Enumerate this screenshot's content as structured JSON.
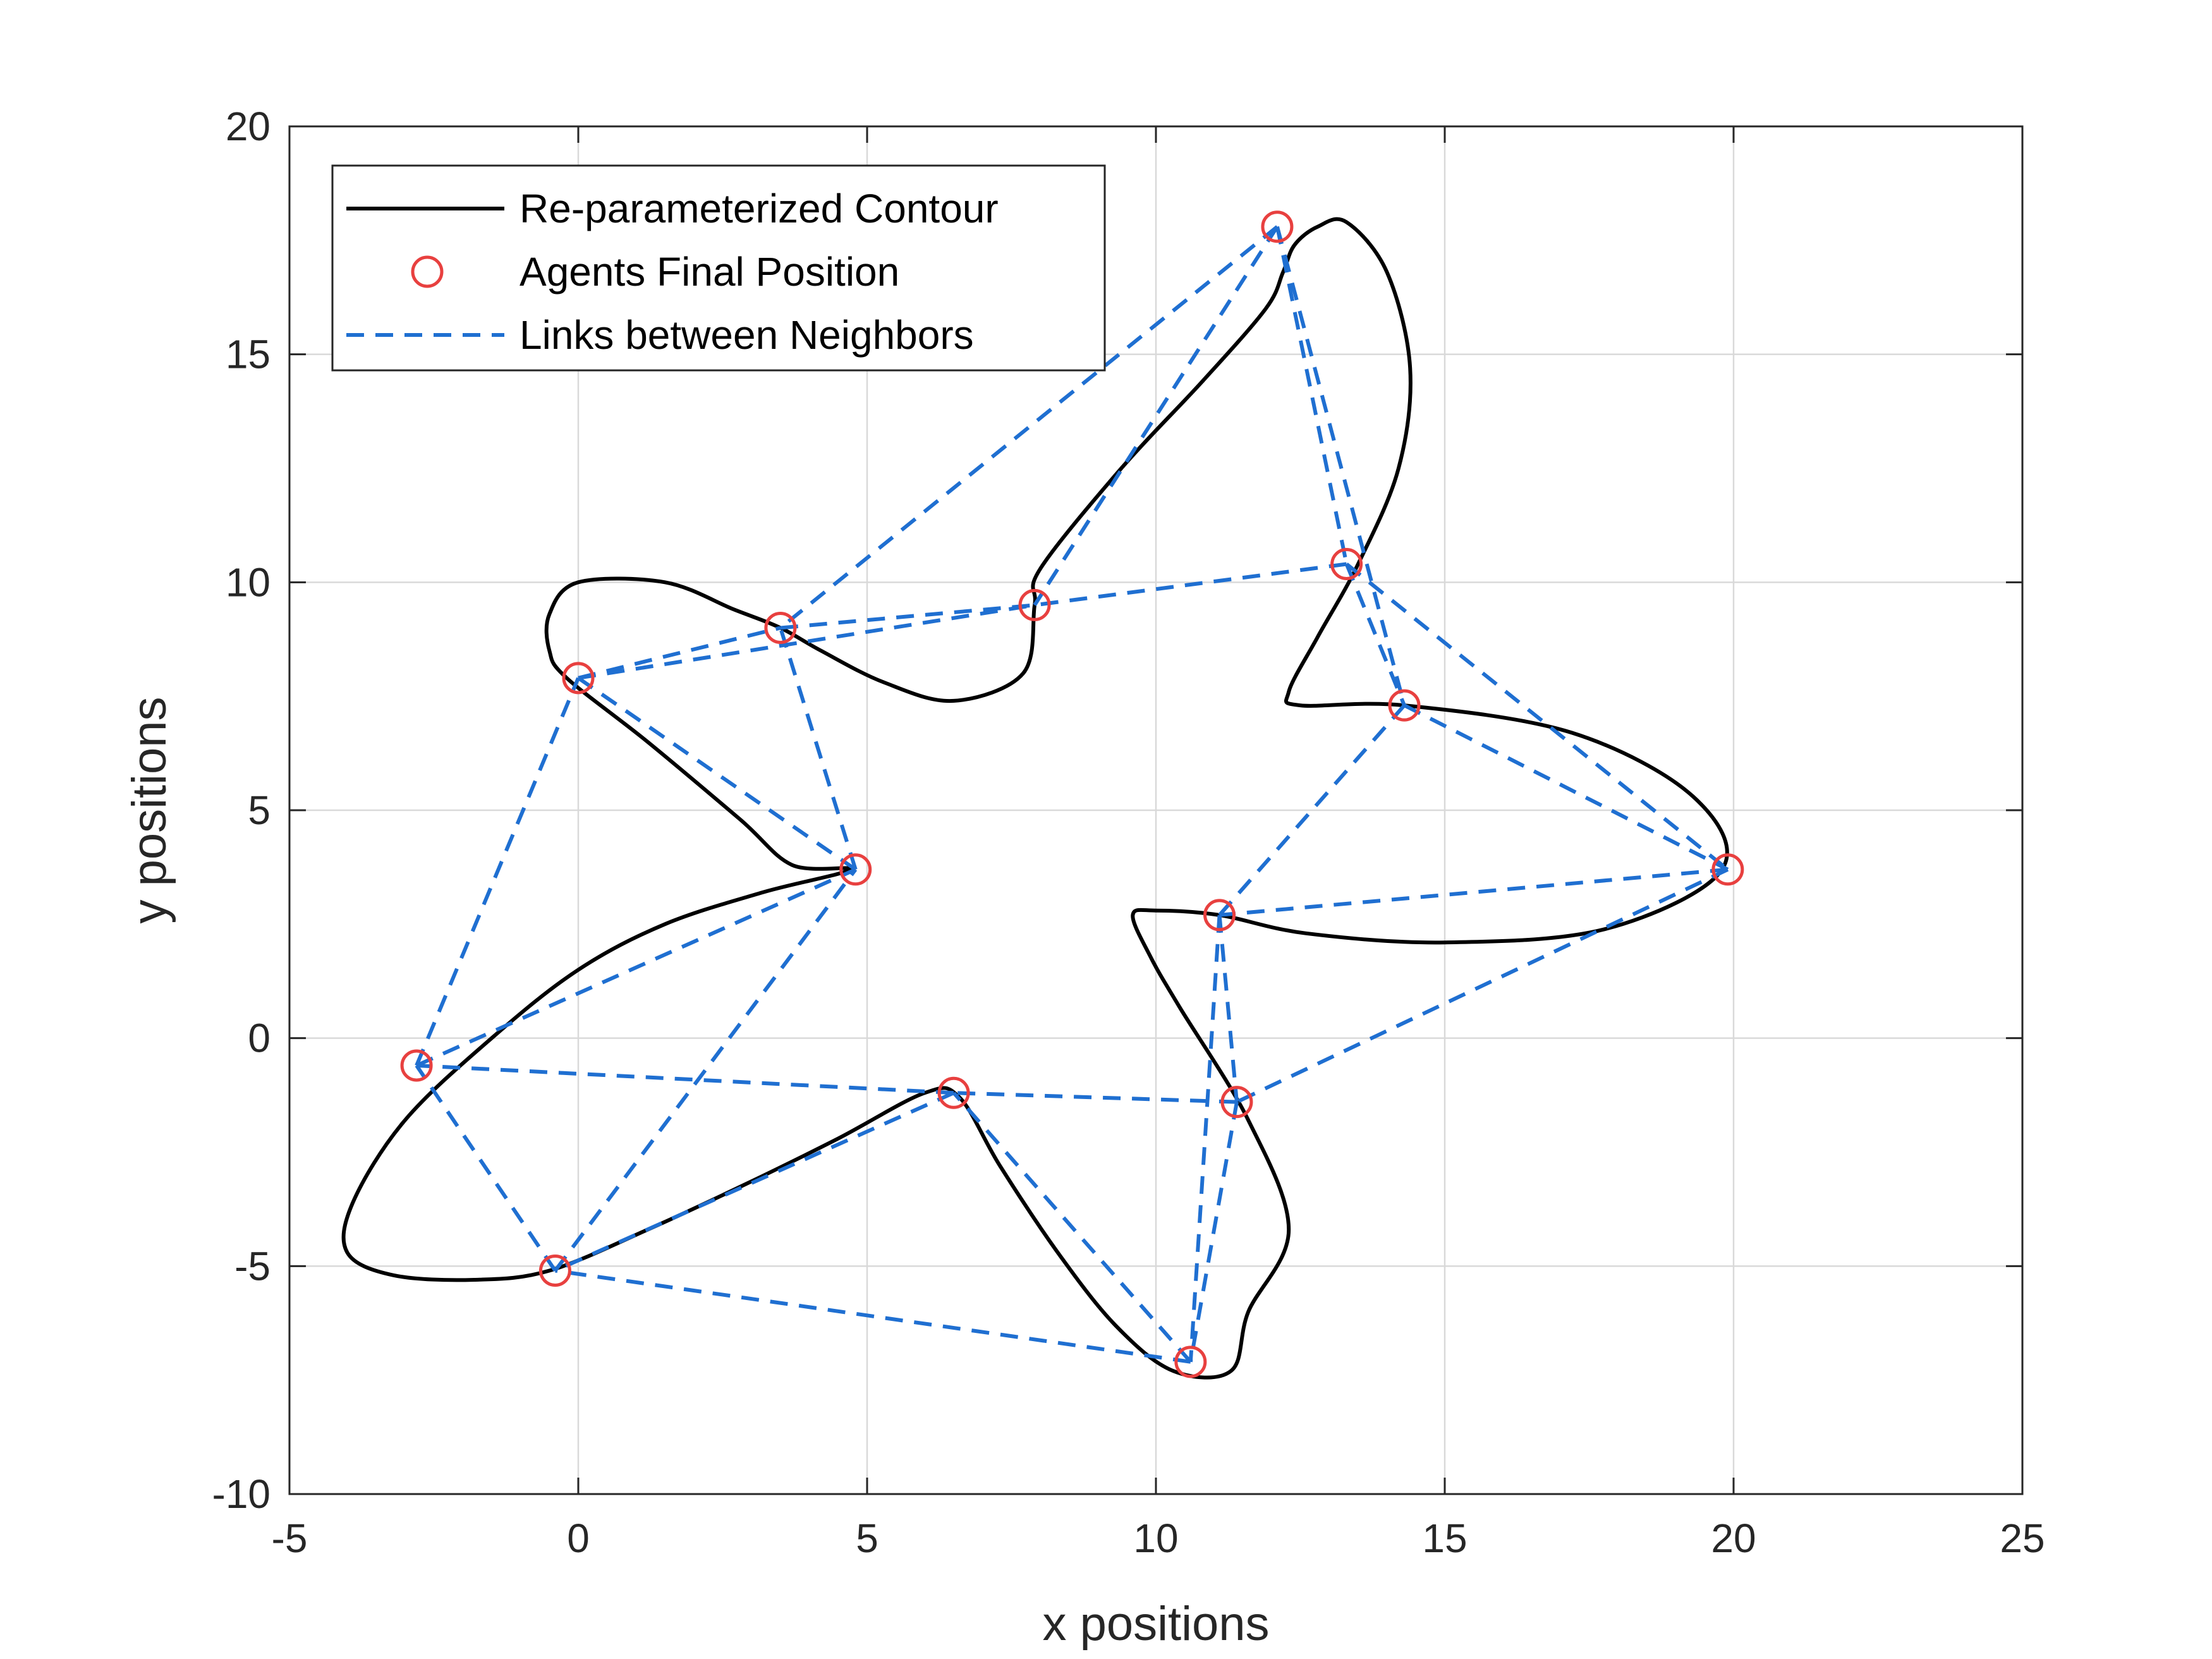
{
  "chart_data": {
    "type": "line",
    "title": "",
    "xlabel": "x positions",
    "ylabel": "y positions",
    "xlim": [
      -5,
      25
    ],
    "ylim": [
      -10,
      20
    ],
    "xticks": [
      -5,
      0,
      5,
      10,
      15,
      20,
      25
    ],
    "yticks": [
      -10,
      -5,
      0,
      5,
      10,
      15,
      20
    ],
    "xtick_labels": [
      "-5",
      "0",
      "5",
      "10",
      "15",
      "20",
      "25"
    ],
    "ytick_labels": [
      "-10",
      "-5",
      "0",
      "5",
      "10",
      "15",
      "20"
    ],
    "grid": true,
    "legend_position": "top-left",
    "colors": {
      "contour": "#000000",
      "agents": "#e8403f",
      "links": "#1f6fd1",
      "grid": "#d9d9d9",
      "axes": "#262626"
    },
    "series": [
      {
        "name": "Re-parameterized Contour",
        "style": "solid",
        "x": [
          4.7,
          3.2,
          1.5,
          0.0,
          -1.5,
          -3.0,
          -3.9,
          -4.0,
          -3.2,
          -1.8,
          -0.5,
          1.2,
          2.9,
          4.5,
          6.0,
          6.6,
          7.3,
          8.3,
          9.3,
          10.3,
          11.3,
          11.6,
          12.3,
          11.6,
          10.4,
          9.9,
          9.6,
          10.0,
          11.1,
          12.6,
          15.0,
          17.8,
          19.8,
          19.3,
          17.2,
          14.3,
          12.5,
          12.3,
          12.8,
          13.5,
          14.2,
          14.4,
          14.0,
          13.3,
          12.8,
          12.4,
          12.2,
          11.9,
          10.8,
          9.4,
          8.0,
          7.9,
          7.7,
          6.5,
          5.3,
          4.2,
          3.5,
          2.7,
          1.5,
          0.0,
          -0.5,
          -0.5,
          -0.2,
          1.2,
          2.8,
          3.7
        ],
        "y": [
          3.7,
          3.2,
          2.5,
          1.5,
          0.0,
          -1.8,
          -3.6,
          -4.7,
          -5.2,
          -5.3,
          -5.1,
          -4.2,
          -3.2,
          -2.2,
          -1.2,
          -1.3,
          -2.8,
          -4.7,
          -6.3,
          -7.3,
          -7.3,
          -6.0,
          -4.2,
          -1.8,
          0.7,
          1.8,
          2.7,
          2.8,
          2.7,
          2.3,
          2.1,
          2.4,
          3.7,
          5.3,
          6.7,
          7.3,
          7.3,
          7.6,
          8.8,
          10.4,
          12.5,
          14.7,
          16.8,
          17.9,
          17.8,
          17.4,
          16.8,
          16.0,
          14.4,
          12.5,
          10.3,
          9.5,
          8.0,
          7.4,
          7.8,
          8.5,
          9.0,
          9.4,
          10.0,
          10.0,
          9.3,
          8.5,
          7.9,
          6.5,
          4.8,
          3.8
        ]
      },
      {
        "name": "Agents Final Position",
        "style": "markers",
        "x": [
          12.1,
          13.3,
          14.3,
          19.9,
          11.1,
          11.4,
          10.6,
          6.5,
          -0.4,
          -2.8,
          4.8,
          0.0,
          3.5,
          7.9
        ],
        "y": [
          17.8,
          10.4,
          7.3,
          3.7,
          2.7,
          -1.4,
          -7.1,
          -1.2,
          -5.1,
          -0.6,
          3.7,
          7.9,
          9.0,
          9.5
        ]
      },
      {
        "name": "Links between Neighbors",
        "style": "dashed",
        "edges": [
          [
            12.1,
            17.8,
            13.3,
            10.4
          ],
          [
            12.1,
            17.8,
            14.3,
            7.3
          ],
          [
            12.1,
            17.8,
            7.9,
            9.5
          ],
          [
            12.1,
            17.8,
            3.5,
            9.0
          ],
          [
            13.3,
            10.4,
            14.3,
            7.3
          ],
          [
            13.3,
            10.4,
            19.9,
            3.7
          ],
          [
            13.3,
            10.4,
            7.9,
            9.5
          ],
          [
            14.3,
            7.3,
            19.9,
            3.7
          ],
          [
            14.3,
            7.3,
            11.1,
            2.7
          ],
          [
            19.9,
            3.7,
            11.1,
            2.7
          ],
          [
            19.9,
            3.7,
            11.4,
            -1.4
          ],
          [
            11.1,
            2.7,
            11.4,
            -1.4
          ],
          [
            11.1,
            2.7,
            10.6,
            -7.1
          ],
          [
            11.4,
            -1.4,
            10.6,
            -7.1
          ],
          [
            11.4,
            -1.4,
            6.5,
            -1.2
          ],
          [
            10.6,
            -7.1,
            6.5,
            -1.2
          ],
          [
            10.6,
            -7.1,
            -0.4,
            -5.1
          ],
          [
            6.5,
            -1.2,
            -0.4,
            -5.1
          ],
          [
            6.5,
            -1.2,
            -2.8,
            -0.6
          ],
          [
            -0.4,
            -5.1,
            -2.8,
            -0.6
          ],
          [
            -0.4,
            -5.1,
            4.8,
            3.7
          ],
          [
            -2.8,
            -0.6,
            4.8,
            3.7
          ],
          [
            -2.8,
            -0.6,
            0.0,
            7.9
          ],
          [
            4.8,
            3.7,
            0.0,
            7.9
          ],
          [
            4.8,
            3.7,
            3.5,
            9.0
          ],
          [
            0.0,
            7.9,
            3.5,
            9.0
          ],
          [
            0.0,
            7.9,
            7.9,
            9.5
          ],
          [
            3.5,
            9.0,
            7.9,
            9.5
          ]
        ]
      }
    ]
  }
}
